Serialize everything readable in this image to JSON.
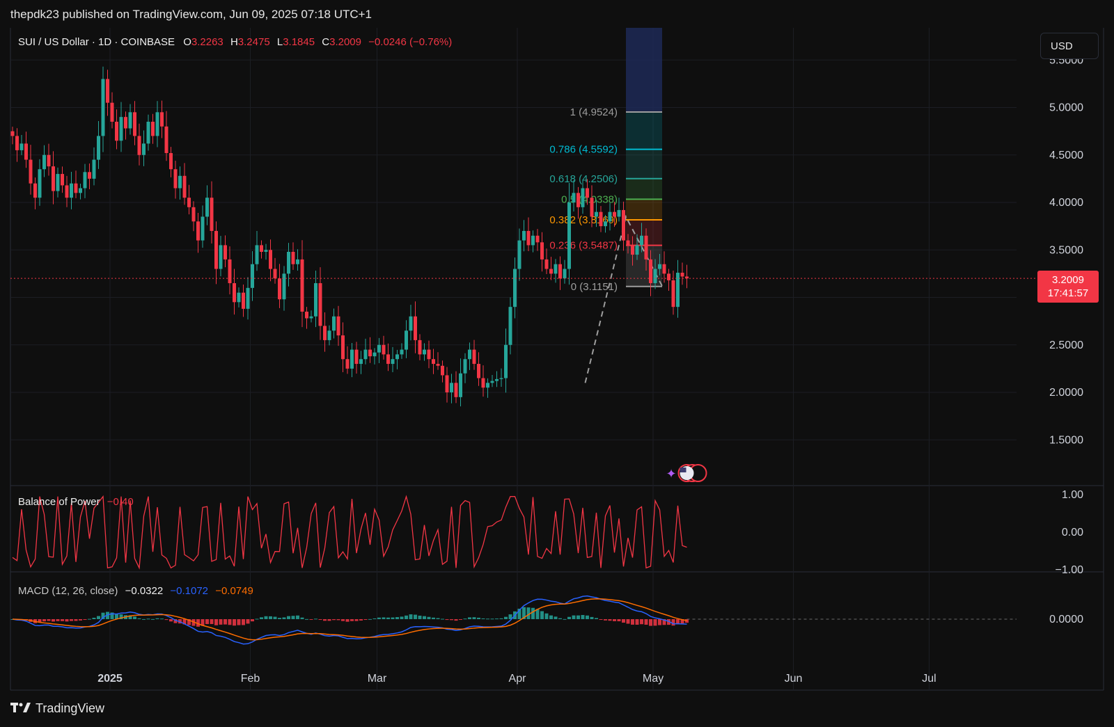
{
  "header": {
    "publish_text": "thepdk23 published on TradingView.com, Jun 09, 2025 07:18 UTC+1"
  },
  "legend": {
    "symbol": "SUI / US Dollar · 1D · COINBASE",
    "o_label": "O",
    "o": "3.2263",
    "h_label": "H",
    "h": "3.2475",
    "l_label": "L",
    "l": "3.1845",
    "c_label": "C",
    "c": "3.2009",
    "change": "−0.0246 (−0.76%)"
  },
  "currency_button": "USD",
  "price_tag": {
    "price": "3.2009",
    "countdown": "17:41:57"
  },
  "bop_legend": {
    "name": "Balance of Power",
    "value": "−0.40"
  },
  "macd_legend": {
    "name": "MACD (12, 26, close)",
    "hist": "−0.0322",
    "macd": "−0.1072",
    "signal": "−0.0749"
  },
  "footer": {
    "brand": "TradingView"
  },
  "colors": {
    "up": "#26a69a",
    "down": "#f23645",
    "bop_line": "#f23645",
    "macd_line": "#2962ff",
    "signal_line": "#ff6d00",
    "hist_up": "#26a69a",
    "hist_down": "#f23645"
  },
  "chart_data": {
    "type": "candlestick",
    "title": "SUI / US Dollar · 1D · COINBASE",
    "price_axis": {
      "ticks": [
        1.5,
        2.0,
        2.5,
        3.0,
        3.5,
        4.0,
        4.5,
        5.0,
        5.5
      ],
      "tick_labels": [
        "1.5000",
        "2.0000",
        "2.5000",
        "3.0000",
        "3.5000",
        "4.0000",
        "4.5000",
        "5.0000",
        "5.5000"
      ]
    },
    "time_axis": {
      "labels": [
        "2025",
        "Feb",
        "Mar",
        "Apr",
        "May",
        "Jun",
        "Jul"
      ],
      "label_dates": [
        "2025-01-01",
        "2025-02-01",
        "2025-03-01",
        "2025-04-01",
        "2025-05-01",
        "2025-06-01",
        "2025-07-01"
      ]
    },
    "start_date": "2024-12-10",
    "last_price": 3.2009,
    "closes": [
      4.7,
      4.55,
      4.62,
      4.45,
      4.2,
      4.05,
      4.35,
      4.5,
      4.38,
      4.12,
      4.3,
      4.18,
      4.05,
      4.2,
      4.1,
      4.15,
      4.32,
      4.25,
      4.45,
      4.7,
      5.3,
      5.05,
      4.85,
      4.65,
      4.9,
      4.78,
      4.95,
      4.7,
      4.5,
      4.62,
      4.85,
      4.7,
      4.95,
      4.8,
      4.52,
      4.35,
      4.15,
      4.28,
      4.05,
      3.95,
      3.8,
      3.6,
      3.85,
      4.05,
      3.7,
      3.3,
      3.55,
      3.4,
      3.15,
      2.95,
      3.05,
      2.88,
      3.1,
      3.35,
      3.55,
      3.48,
      3.5,
      3.3,
      3.2,
      2.98,
      3.25,
      3.48,
      3.35,
      3.4,
      2.85,
      2.78,
      2.8,
      3.15,
      2.7,
      2.55,
      2.65,
      2.8,
      2.6,
      2.35,
      2.25,
      2.45,
      2.3,
      2.35,
      2.45,
      2.38,
      2.42,
      2.5,
      2.4,
      2.3,
      2.35,
      2.4,
      2.45,
      2.65,
      2.8,
      2.55,
      2.4,
      2.45,
      2.35,
      2.3,
      2.28,
      2.18,
      2.0,
      2.1,
      1.95,
      2.2,
      2.35,
      2.45,
      2.3,
      2.15,
      2.05,
      2.1,
      2.12,
      2.14,
      2.15,
      2.5,
      2.9,
      3.3,
      3.6,
      3.7,
      3.55,
      3.65,
      3.58,
      3.4,
      3.3,
      3.25,
      3.35,
      3.2,
      3.3,
      4.0,
      4.1,
      3.95,
      4.15,
      4.05,
      3.85,
      3.9,
      3.75,
      3.8,
      3.9,
      3.85,
      3.92,
      3.6,
      3.55,
      3.45,
      3.55,
      3.65,
      3.4,
      3.15,
      3.3,
      3.35,
      3.25,
      3.18,
      2.9,
      3.26,
      3.22,
      3.2
    ],
    "fibonacci": {
      "levels": [
        {
          "ratio": "1",
          "price": 4.9524,
          "label": "1 (4.9524)",
          "color": "#9e9e9e"
        },
        {
          "ratio": "0.786",
          "price": 4.5592,
          "label": "0.786 (4.5592)",
          "color": "#00bcd4"
        },
        {
          "ratio": "0.618",
          "price": 4.2506,
          "label": "0.618 (4.2506)",
          "color": "#26a69a"
        },
        {
          "ratio": "0.5",
          "price": 4.0338,
          "label": "0.5 (4.0338)",
          "color": "#4caf50"
        },
        {
          "ratio": "0.382",
          "price": 3.8169,
          "label": "0.382 (3.8169)",
          "color": "#ff9800"
        },
        {
          "ratio": "0.236",
          "price": 3.5487,
          "label": "0.236 (3.5487)",
          "color": "#f23645"
        },
        {
          "ratio": "0",
          "price": 3.1151,
          "label": "0 (3.1151)",
          "color": "#9e9e9e"
        }
      ]
    },
    "bop": {
      "axis_ticks": [
        "1.00",
        "0.00",
        "−1.00"
      ],
      "last": -0.4
    },
    "macd": {
      "axis_ticks": [
        "0.0000"
      ],
      "hist_last": -0.0322,
      "macd_last": -0.1072,
      "signal_last": -0.0749
    }
  }
}
